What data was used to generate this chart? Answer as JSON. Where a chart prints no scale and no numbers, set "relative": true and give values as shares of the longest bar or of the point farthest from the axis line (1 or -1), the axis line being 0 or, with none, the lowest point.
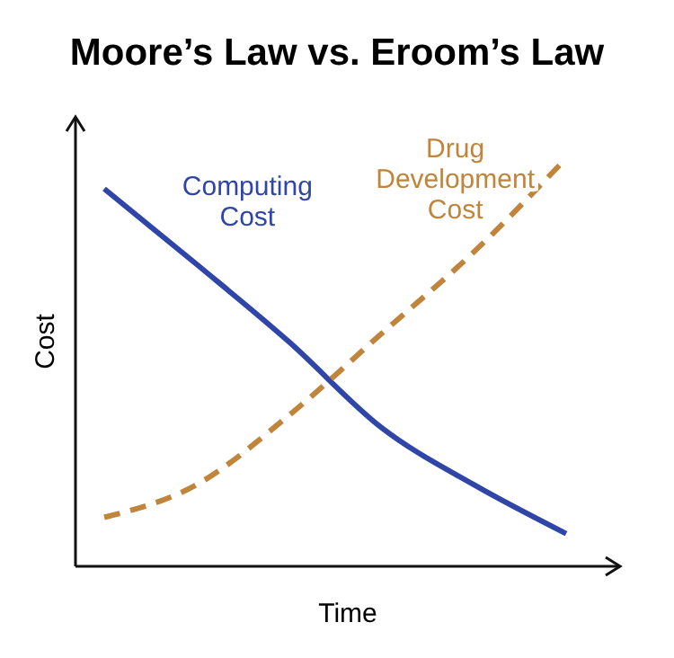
{
  "chart_data": {
    "type": "line",
    "title": "Moore’s Law vs. Eroom’s Law",
    "xlabel": "Time",
    "ylabel": "Cost",
    "relative": true,
    "categories": [
      null,
      null,
      null,
      null,
      null,
      null
    ],
    "grid": false,
    "marker": "none",
    "series": [
      {
        "name": "Computing Cost",
        "color": "#2f45a8",
        "line_style": "solid",
        "values": [
          0.925,
          0.74,
          0.55,
          0.34,
          0.2,
          0.08
        ]
      },
      {
        "name": "Drug Development Cost",
        "color": "#c0843a",
        "line_style": "dashed",
        "values": [
          0.12,
          0.2,
          0.37,
          0.57,
          0.77,
          1.0
        ]
      }
    ]
  }
}
